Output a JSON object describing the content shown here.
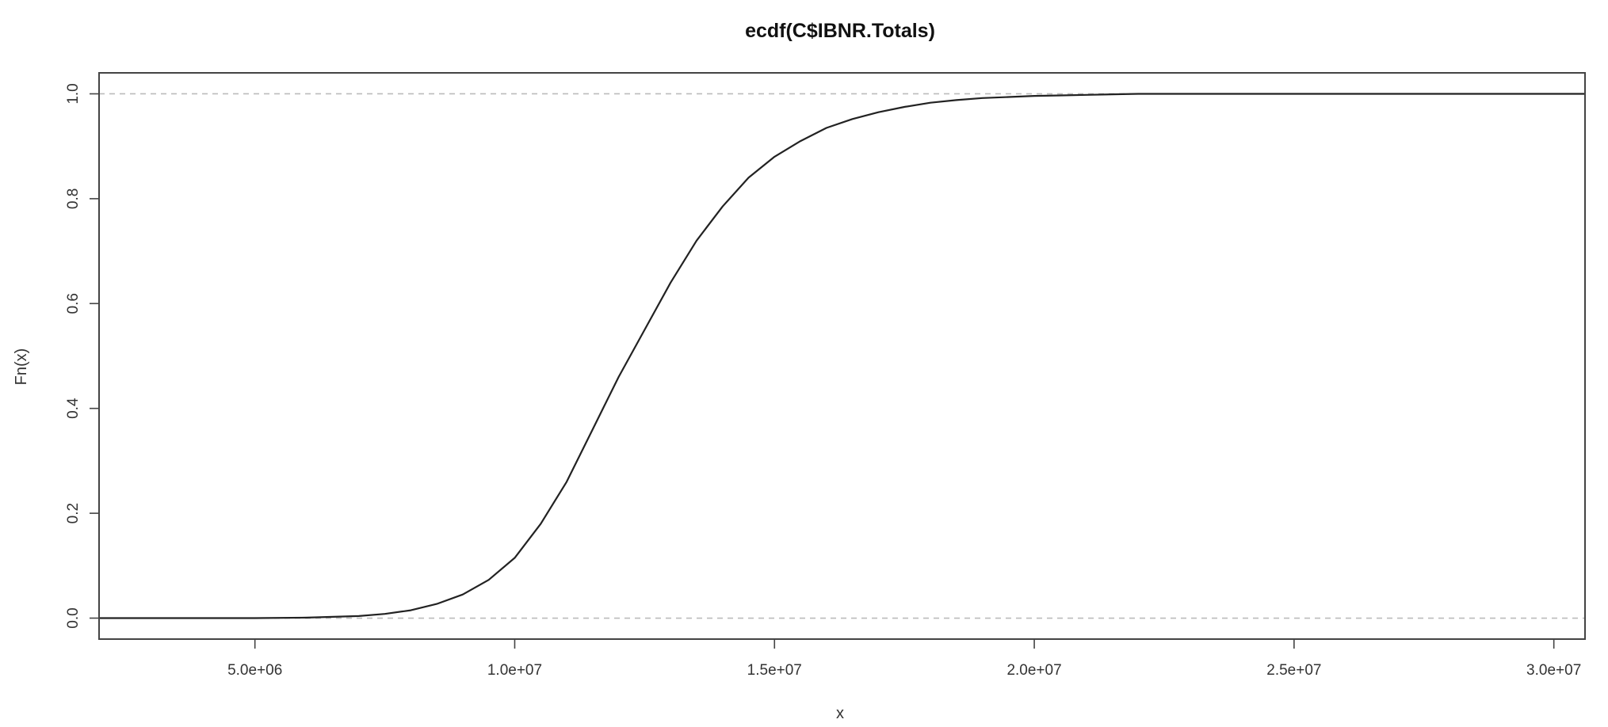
{
  "chart_data": {
    "type": "line",
    "subtype": "ecdf-step",
    "title": "ecdf(C$IBNR.Totals)",
    "xlabel": "x",
    "ylabel": "Fn(x)",
    "xlim": [
      2000000,
      30600000
    ],
    "ylim": [
      -0.04,
      1.04
    ],
    "x_ticks": [
      {
        "value": 5000000,
        "label": "5.0e+06"
      },
      {
        "value": 10000000,
        "label": "1.0e+07"
      },
      {
        "value": 15000000,
        "label": "1.5e+07"
      },
      {
        "value": 20000000,
        "label": "2.0e+07"
      },
      {
        "value": 25000000,
        "label": "2.5e+07"
      },
      {
        "value": 30000000,
        "label": "3.0e+07"
      }
    ],
    "y_ticks": [
      {
        "value": 0.0,
        "label": "0.0"
      },
      {
        "value": 0.2,
        "label": "0.2"
      },
      {
        "value": 0.4,
        "label": "0.4"
      },
      {
        "value": 0.6,
        "label": "0.6"
      },
      {
        "value": 0.8,
        "label": "0.8"
      },
      {
        "value": 1.0,
        "label": "1.0"
      }
    ],
    "reference_lines": [
      0,
      1
    ],
    "series": [
      {
        "x": [
          2000000,
          5000000,
          6000000,
          7000000,
          7500000,
          8000000,
          8500000,
          9000000,
          9500000,
          10000000,
          10500000,
          11000000,
          11500000,
          12000000,
          12500000,
          13000000,
          13500000,
          14000000,
          14500000,
          15000000,
          15500000,
          16000000,
          16500000,
          17000000,
          17500000,
          18000000,
          18500000,
          19000000,
          19500000,
          20000000,
          20500000,
          21000000,
          22000000,
          30600000
        ],
        "y": [
          0,
          0,
          0.001,
          0.004,
          0.008,
          0.015,
          0.027,
          0.045,
          0.073,
          0.115,
          0.18,
          0.26,
          0.36,
          0.46,
          0.55,
          0.64,
          0.72,
          0.785,
          0.84,
          0.88,
          0.91,
          0.935,
          0.952,
          0.965,
          0.975,
          0.983,
          0.988,
          0.992,
          0.994,
          0.996,
          0.997,
          0.998,
          1.0,
          1.0
        ]
      }
    ],
    "grid": false,
    "colors": {
      "line": "#222222",
      "reference": "#bbbbbb",
      "axes": "#444444"
    }
  }
}
